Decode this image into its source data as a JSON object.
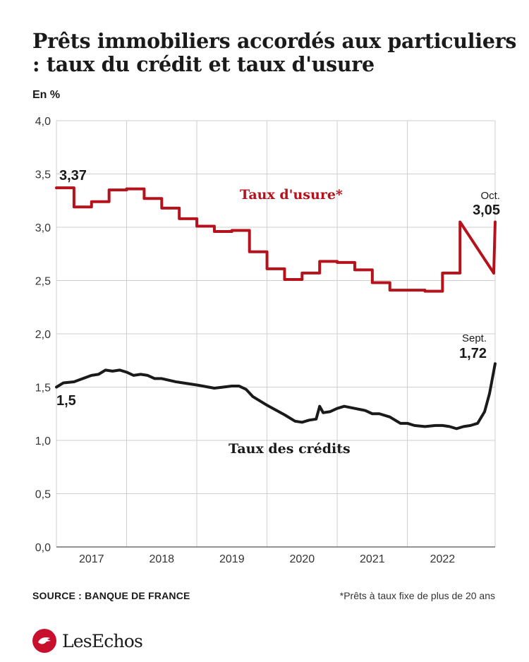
{
  "header": {
    "title": "Prêts immobiliers accordés aux particuliers : taux du crédit et taux d'usure",
    "unit": "En %"
  },
  "footer": {
    "source": "SOURCE : BANQUE DE FRANCE",
    "note": "*Prêts à taux fixe de plus de 20 ans"
  },
  "brand": {
    "name": "LesEchos",
    "color": "#c8102e"
  },
  "chart_data": {
    "type": "line",
    "title": "Prêts immobiliers accordés aux particuliers : taux du crédit et taux d'usure",
    "ylabel": "En %",
    "ylim": [
      0,
      4
    ],
    "xlim": [
      2016.5,
      2022.75
    ],
    "y_ticks": [
      "0,0",
      "0,5",
      "1,0",
      "1,5",
      "2,0",
      "2,5",
      "3,0",
      "3,5",
      "4,0"
    ],
    "y_tick_values": [
      0,
      0.5,
      1,
      1.5,
      2,
      2.5,
      3,
      3.5,
      4
    ],
    "x_ticks": [
      "2017",
      "2018",
      "2019",
      "2020",
      "2021",
      "2022"
    ],
    "x_tick_values": [
      2017,
      2018,
      2019,
      2020,
      2021,
      2022
    ],
    "x_bounds": [
      2017.5,
      2018.5,
      2019.5,
      2020.5,
      2021.5
    ],
    "grid": true,
    "series": [
      {
        "name": "Taux d'usure*",
        "color": "#b5121b",
        "step": true,
        "points": [
          [
            2016.5,
            3.37
          ],
          [
            2016.75,
            3.19
          ],
          [
            2017.0,
            3.24
          ],
          [
            2017.25,
            3.35
          ],
          [
            2017.5,
            3.36
          ],
          [
            2017.75,
            3.27
          ],
          [
            2018.0,
            3.18
          ],
          [
            2018.25,
            3.08
          ],
          [
            2018.5,
            3.01
          ],
          [
            2018.75,
            2.96
          ],
          [
            2019.0,
            2.97
          ],
          [
            2019.25,
            2.77
          ],
          [
            2019.5,
            2.61
          ],
          [
            2019.75,
            2.51
          ],
          [
            2020.0,
            2.57
          ],
          [
            2020.25,
            2.68
          ],
          [
            2020.5,
            2.67
          ],
          [
            2020.75,
            2.6
          ],
          [
            2021.0,
            2.48
          ],
          [
            2021.25,
            2.41
          ],
          [
            2021.5,
            2.41
          ],
          [
            2021.75,
            2.4
          ],
          [
            2022.0,
            2.57
          ],
          [
            2022.25,
            3.05
          ]
        ],
        "end_x": 2022.75
      },
      {
        "name": "Taux des crédits",
        "color": "#1a1a1a",
        "step": false,
        "points": [
          [
            2016.5,
            1.5
          ],
          [
            2016.6,
            1.54
          ],
          [
            2016.75,
            1.55
          ],
          [
            2017.0,
            1.61
          ],
          [
            2017.1,
            1.62
          ],
          [
            2017.2,
            1.66
          ],
          [
            2017.3,
            1.65
          ],
          [
            2017.4,
            1.66
          ],
          [
            2017.5,
            1.64
          ],
          [
            2017.6,
            1.61
          ],
          [
            2017.7,
            1.62
          ],
          [
            2017.8,
            1.61
          ],
          [
            2017.9,
            1.58
          ],
          [
            2018.0,
            1.58
          ],
          [
            2018.2,
            1.55
          ],
          [
            2018.5,
            1.52
          ],
          [
            2018.75,
            1.49
          ],
          [
            2019.0,
            1.51
          ],
          [
            2019.1,
            1.51
          ],
          [
            2019.2,
            1.48
          ],
          [
            2019.3,
            1.41
          ],
          [
            2019.5,
            1.33
          ],
          [
            2019.75,
            1.24
          ],
          [
            2019.9,
            1.18
          ],
          [
            2020.0,
            1.17
          ],
          [
            2020.1,
            1.19
          ],
          [
            2020.2,
            1.2
          ],
          [
            2020.25,
            1.32
          ],
          [
            2020.3,
            1.26
          ],
          [
            2020.4,
            1.27
          ],
          [
            2020.5,
            1.3
          ],
          [
            2020.6,
            1.32
          ],
          [
            2020.75,
            1.3
          ],
          [
            2020.9,
            1.28
          ],
          [
            2021.0,
            1.25
          ],
          [
            2021.1,
            1.25
          ],
          [
            2021.25,
            1.22
          ],
          [
            2021.4,
            1.16
          ],
          [
            2021.5,
            1.16
          ],
          [
            2021.6,
            1.14
          ],
          [
            2021.75,
            1.13
          ],
          [
            2021.9,
            1.14
          ],
          [
            2022.0,
            1.14
          ],
          [
            2022.1,
            1.13
          ],
          [
            2022.2,
            1.11
          ],
          [
            2022.3,
            1.13
          ],
          [
            2022.4,
            1.14
          ],
          [
            2022.5,
            1.16
          ],
          [
            2022.6,
            1.27
          ],
          [
            2022.67,
            1.44
          ],
          [
            2022.75,
            1.72
          ]
        ]
      }
    ],
    "annotations": [
      {
        "text": "3,37",
        "series": 0
      },
      {
        "text": "Taux d'usure*",
        "series": 0
      },
      {
        "text": "Oct.",
        "series": 0
      },
      {
        "text": "3,05",
        "series": 0
      },
      {
        "text": "1,5",
        "series": 1
      },
      {
        "text": "Taux des crédits",
        "series": 1
      },
      {
        "text": "Sept.",
        "series": 1
      },
      {
        "text": "1,72",
        "series": 1
      }
    ]
  }
}
